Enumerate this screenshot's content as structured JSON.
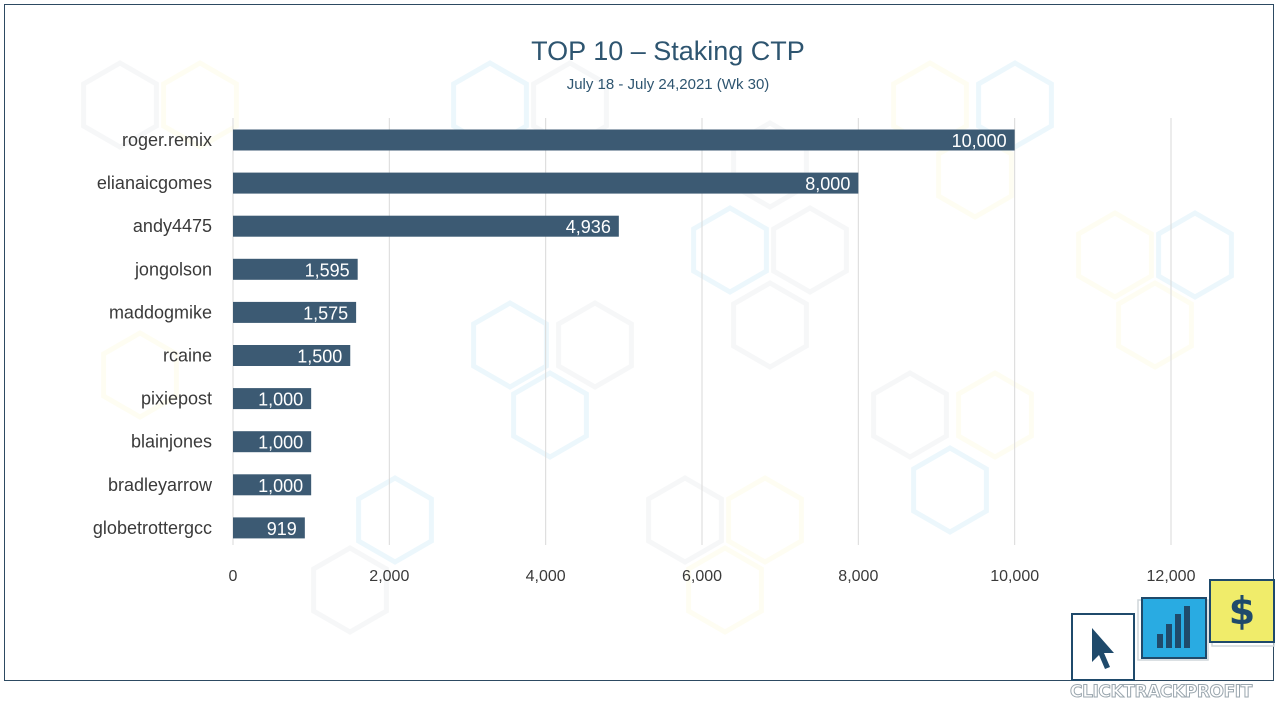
{
  "chart_data": {
    "type": "bar",
    "orientation": "horizontal",
    "title": "TOP 10 – Staking CTP",
    "subtitle": "July 18 - July 24,2021 (Wk 30)",
    "categories": [
      "roger.remix",
      "elianaicgomes",
      "andy4475",
      "jongolson",
      "maddogmike",
      "rcaine",
      "pixiepost",
      "blainjones",
      "bradleyarrow",
      "globetrottergcc"
    ],
    "values": [
      10000,
      8000,
      4936,
      1595,
      1575,
      1500,
      1000,
      1000,
      1000,
      919
    ],
    "data_labels": [
      "10,000",
      "8,000",
      "4,936",
      "1,595",
      "1,575",
      "1,500",
      "1,000",
      "1,000",
      "1,000",
      "919"
    ],
    "xticks": [
      0,
      2000,
      4000,
      6000,
      8000,
      10000,
      12000
    ],
    "xtick_labels": [
      "0",
      "2,000",
      "4,000",
      "6,000",
      "8,000",
      "10,000",
      "12,000"
    ],
    "xlim": [
      0,
      12000
    ],
    "grid": true,
    "legend": "none",
    "bar_color": "#3c5a73"
  },
  "logo": {
    "text": "CLICKTRACKPROFIT",
    "icons": [
      "cursor-icon",
      "bar-chart-icon",
      "dollar-icon"
    ],
    "colors": {
      "blue": "#29abe2",
      "yellow": "#f0ec6a",
      "navy": "#1f4a6b"
    }
  }
}
